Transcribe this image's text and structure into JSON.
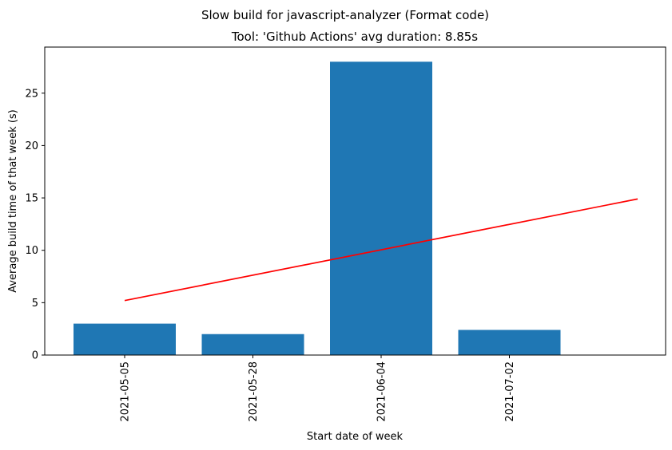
{
  "chart_data": {
    "type": "bar",
    "suptitle": "Slow build for javascript-analyzer (Format code)",
    "title": "Tool: 'Github Actions' avg duration: 8.85s",
    "xlabel": "Start date of week",
    "ylabel": "Average build time of that week (s)",
    "categories": [
      "2021-05-05",
      "2021-05-28",
      "2021-06-04",
      "2021-07-02"
    ],
    "values": [
      3.0,
      2.0,
      28.0,
      2.4
    ],
    "bar_color": "#1f77b4",
    "trend_line": {
      "color": "#ff0000",
      "start": {
        "category_index": 0,
        "value": 5.2
      },
      "end": {
        "category_index": 4,
        "value": 14.9
      }
    },
    "ylim": [
      0,
      29.4
    ],
    "yticks": [
      0,
      5,
      10,
      15,
      20,
      25
    ],
    "grid": false,
    "legend": "none"
  }
}
